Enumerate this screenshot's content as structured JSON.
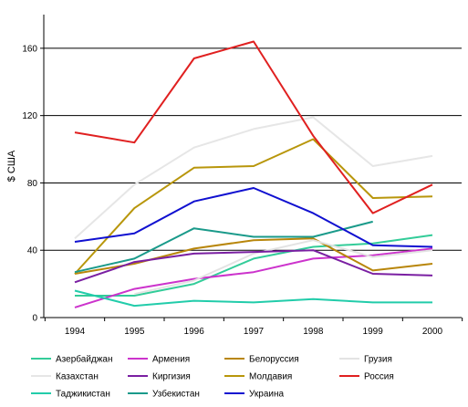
{
  "chart_data": {
    "type": "line",
    "ylabel": "$ США",
    "xlabel": "",
    "ylim": [
      0,
      180
    ],
    "yticks": [
      0,
      40,
      80,
      120,
      160
    ],
    "grid": true,
    "legend_placement": "bottom",
    "categories": [
      "1994",
      "1995",
      "1996",
      "1997",
      "1998",
      "1999",
      "2000"
    ],
    "series": [
      {
        "name": "Азербайджан",
        "color": "#33cc99",
        "values": [
          13,
          13,
          20,
          35,
          42,
          44,
          49
        ]
      },
      {
        "name": "Армения",
        "color": "#cc33cc",
        "values": [
          6,
          17,
          23,
          27,
          35,
          37,
          41
        ]
      },
      {
        "name": "Белоруссия",
        "color": "#b8860b",
        "values": [
          26,
          32,
          41,
          46,
          47,
          28,
          32
        ]
      },
      {
        "name": "Грузия",
        "color": "#e3e3e3",
        "values": [
          null,
          14,
          22,
          38,
          46,
          36,
          40
        ]
      },
      {
        "name": "Казахстан",
        "color": "#e6e6e6",
        "values": [
          47,
          79,
          101,
          112,
          119,
          90,
          96
        ]
      },
      {
        "name": "Киргизия",
        "color": "#7a1fa2",
        "values": [
          21,
          33,
          38,
          39,
          40,
          26,
          25
        ]
      },
      {
        "name": "Молдавия",
        "color": "#b8960b",
        "values": [
          26,
          65,
          89,
          90,
          106,
          71,
          72
        ]
      },
      {
        "name": "Россия",
        "color": "#e02020",
        "values": [
          110,
          104,
          154,
          164,
          108,
          62,
          79
        ]
      },
      {
        "name": "Таджикистан",
        "color": "#22ccaa",
        "values": [
          16,
          7,
          10,
          9,
          11,
          9,
          9
        ]
      },
      {
        "name": "Узбекистан",
        "color": "#1a9a8a",
        "values": [
          27,
          35,
          53,
          48,
          48,
          57,
          null
        ]
      },
      {
        "name": "Украина",
        "color": "#1010d0",
        "values": [
          45,
          50,
          69,
          77,
          62,
          43,
          42
        ]
      }
    ]
  }
}
